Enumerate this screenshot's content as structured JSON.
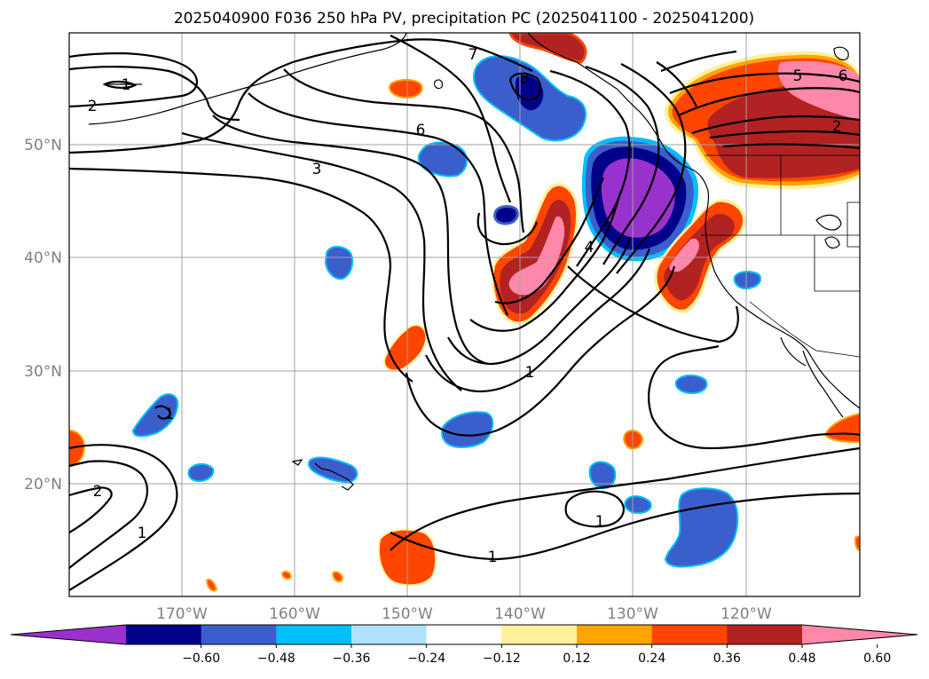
{
  "title": "2025040900 F036 250 hPa PV, precipitation PC (2025041100 - 2025041200)",
  "lat_labels": [
    "50°N",
    "40°N",
    "30°N",
    "20°N"
  ],
  "lon_labels": [
    "170°W",
    "160°W",
    "150°W",
    "140°W",
    "130°W",
    "120°W"
  ],
  "colorbar": {
    "colors": [
      "#9932cc",
      "#00008b",
      "#3a5fcd",
      "#00bfff",
      "#b0e2ff",
      "#ffffff",
      "#fff09a",
      "#ffa500",
      "#ff4500",
      "#b22222",
      "#ff88aa"
    ],
    "tick_labels": [
      "−0.60",
      "−0.48",
      "−0.36",
      "−0.24",
      "−0.12",
      "0.12",
      "0.24",
      "0.36",
      "0.48",
      "0.60"
    ]
  },
  "contour_labels": [
    "1",
    "2",
    "7",
    "8",
    "6",
    "3",
    "4",
    "1",
    "5",
    "6",
    "2",
    "1",
    "2",
    "1",
    "1",
    "1"
  ]
}
